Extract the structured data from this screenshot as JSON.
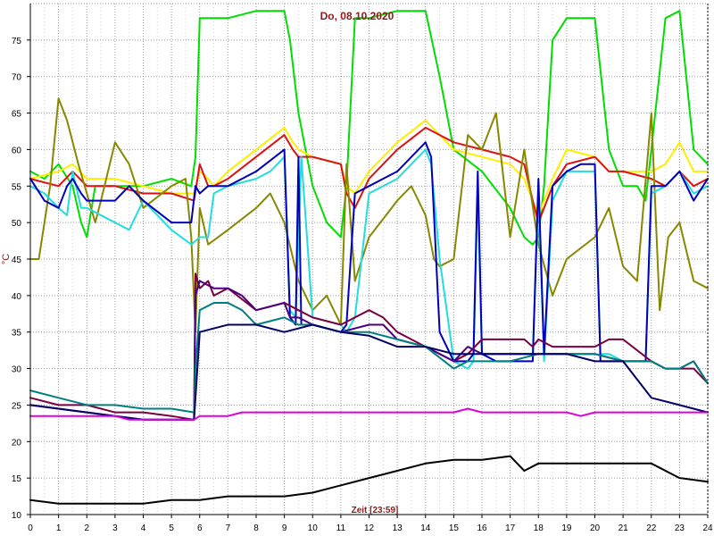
{
  "chart_data": {
    "type": "line",
    "title": "Do, 08.10.2020",
    "ylabel": "°C",
    "xlabel": "Zeit [23:59]",
    "xlim": [
      0,
      24
    ],
    "ylim": [
      10,
      80
    ],
    "xticks": [
      "0",
      "1",
      "2",
      "3",
      "4",
      "5",
      "6",
      "7",
      "8",
      "9",
      "10",
      "11",
      "12",
      "13",
      "14",
      "15",
      "16",
      "17",
      "18",
      "19",
      "20",
      "21",
      "22",
      "23",
      "24"
    ],
    "yticks": [
      "10",
      "15",
      "20",
      "25",
      "30",
      "35",
      "40",
      "45",
      "50",
      "55",
      "60",
      "65",
      "70",
      "75"
    ],
    "grid": true,
    "legend": "none",
    "series": [
      {
        "color": "#00dd00",
        "x": [
          0,
          0.5,
          1,
          1.5,
          1.8,
          2,
          2.3,
          3,
          4,
          5,
          5.7,
          5.85,
          6,
          6.5,
          7,
          8,
          9,
          9.2,
          9.5,
          10,
          10.5,
          11,
          11.2,
          11.5,
          12,
          13,
          14,
          14.5,
          15,
          16,
          17,
          17.5,
          17.8,
          18,
          18.2,
          18.5,
          19,
          20,
          20.5,
          21,
          21.5,
          21.8,
          22,
          22.5,
          23,
          23.5,
          24
        ],
        "y": [
          57,
          56,
          58,
          55,
          50,
          48,
          55,
          55,
          55,
          56,
          55,
          59,
          78,
          78,
          78,
          79,
          79,
          75,
          65,
          55,
          50,
          48,
          55,
          78,
          78,
          79,
          79,
          70,
          60,
          57,
          52,
          48,
          47,
          48,
          55,
          75,
          78,
          78,
          60,
          55,
          55,
          53,
          60,
          78,
          79,
          60,
          58
        ]
      },
      {
        "color": "#ffee00",
        "x": [
          0,
          1,
          1.5,
          2,
          3,
          4,
          5,
          5.8,
          6,
          6.3,
          6.5,
          7,
          8,
          9,
          9.3,
          9.5,
          10,
          11,
          11.2,
          11.5,
          12,
          13,
          14,
          14.5,
          15,
          16,
          17,
          17.5,
          17.8,
          18,
          18.5,
          19,
          20,
          20.5,
          21,
          22,
          22.5,
          23,
          23.5,
          24
        ],
        "y": [
          56,
          57,
          58,
          56,
          56,
          55,
          54,
          54,
          57,
          56,
          55,
          57,
          60,
          63,
          61,
          60,
          59,
          58,
          55,
          54,
          57,
          61,
          64,
          62,
          60,
          59,
          58,
          56,
          53,
          51,
          56,
          60,
          59,
          57,
          57,
          57,
          58,
          61,
          57,
          57
        ]
      },
      {
        "color": "#dd1111",
        "x": [
          0,
          1,
          1.5,
          2,
          3,
          4,
          5,
          5.8,
          6,
          6.3,
          6.5,
          7,
          8,
          9,
          9.3,
          9.5,
          10,
          11,
          11.2,
          11.5,
          12,
          13,
          14,
          14.5,
          15,
          16,
          17,
          17.5,
          17.8,
          18,
          18.5,
          19,
          20,
          20.5,
          21,
          22,
          22.5,
          23,
          23.5,
          24
        ],
        "y": [
          56,
          55,
          57,
          55,
          55,
          54,
          54,
          53,
          58,
          55,
          55,
          56,
          59,
          62,
          60,
          59,
          59,
          58,
          54,
          52,
          56,
          60,
          63,
          62,
          61,
          60,
          59,
          58,
          53,
          50,
          55,
          58,
          59,
          57,
          57,
          56,
          55,
          57,
          55,
          56
        ]
      },
      {
        "color": "#888800",
        "x": [
          0,
          0.3,
          0.7,
          1,
          1.3,
          1.7,
          2,
          2.3,
          2.5,
          3,
          3.5,
          4,
          5,
          5.5,
          5.7,
          5.85,
          6,
          6.3,
          7,
          8,
          8.5,
          9,
          9.5,
          10,
          10.5,
          11,
          11.2,
          11.5,
          12,
          13,
          13.5,
          14,
          14.3,
          14.5,
          15,
          15.5,
          16,
          16.5,
          17,
          17.5,
          18,
          18.5,
          19,
          20,
          20.5,
          21,
          21.5,
          22,
          22.3,
          22.6,
          23,
          23.5,
          24
        ],
        "y": [
          45,
          45,
          55,
          67,
          64,
          58,
          54,
          50,
          53,
          61,
          58,
          52,
          55,
          56,
          48,
          35,
          52,
          47,
          49,
          52,
          54,
          50,
          42,
          38,
          40,
          36,
          58,
          42,
          48,
          53,
          55,
          51,
          45,
          44,
          45,
          62,
          60,
          65,
          48,
          60,
          47,
          40,
          45,
          48,
          52,
          44,
          42,
          65,
          38,
          48,
          50,
          42,
          41
        ]
      },
      {
        "color": "#22dddd",
        "x": [
          0,
          0.5,
          1,
          1.3,
          1.5,
          1.8,
          2,
          3,
          3.5,
          4,
          5,
          5.7,
          6,
          6.3,
          6.5,
          7,
          8,
          8.5,
          9,
          9.2,
          9.4,
          9.6,
          10,
          11,
          11.2,
          11.5,
          12,
          13,
          14,
          14.2,
          14.5,
          15,
          15.5,
          15.7,
          15.85,
          16,
          16.5,
          17,
          17.5,
          17.8,
          18,
          18.2,
          18.5,
          19,
          19.5,
          20,
          20.2,
          20.5,
          21,
          21.5,
          21.8,
          22,
          22.5,
          23,
          23.5,
          24
        ],
        "y": [
          55,
          54,
          52,
          51,
          57,
          52,
          52,
          50,
          49,
          53,
          49,
          47,
          48,
          48,
          54,
          55,
          56,
          57,
          59,
          38,
          37,
          59,
          37,
          36,
          35,
          37,
          54,
          56,
          60,
          58,
          45,
          31,
          30,
          31,
          55,
          32,
          32,
          32,
          32,
          32,
          54,
          31,
          53,
          57,
          57,
          57,
          32,
          32,
          31,
          31,
          31,
          54,
          55,
          57,
          54,
          55
        ]
      },
      {
        "color": "#0000bb",
        "x": [
          0,
          0.5,
          1,
          1.3,
          1.5,
          1.8,
          2,
          3,
          3.5,
          4,
          5,
          5.7,
          5.85,
          6,
          6.3,
          7,
          8,
          9,
          9.2,
          9.4,
          9.5,
          9.6,
          10,
          11,
          11.2,
          11.5,
          12,
          13,
          14,
          14.2,
          14.5,
          15,
          15.5,
          15.7,
          15.85,
          16,
          16.5,
          17,
          17.5,
          17.8,
          18,
          18.2,
          18.5,
          19,
          19.5,
          20,
          20.2,
          20.5,
          21,
          21.5,
          21.8,
          22,
          22.5,
          23,
          23.5,
          24
        ],
        "y": [
          56,
          53,
          52,
          55,
          56,
          54,
          53,
          53,
          55,
          53,
          50,
          50,
          55,
          54,
          55,
          55,
          57,
          60,
          37,
          36,
          59,
          36,
          36,
          35,
          36,
          54,
          55,
          57,
          61,
          59,
          35,
          31,
          31,
          32,
          57,
          32,
          31,
          31,
          31,
          31,
          56,
          32,
          55,
          57,
          58,
          58,
          31,
          31,
          31,
          31,
          31,
          55,
          55,
          57,
          53,
          56
        ]
      },
      {
        "color": "#7a0040",
        "x": [
          0,
          1,
          2,
          3,
          4,
          5,
          5.8,
          5.85,
          6,
          6.3,
          6.5,
          7,
          8,
          9,
          9.5,
          10,
          11,
          12,
          12.5,
          13,
          13.5,
          14,
          14.5,
          15,
          15.5,
          16,
          17,
          17.5,
          17.8,
          18,
          18.5,
          19,
          20,
          20.5,
          21,
          22,
          22.5,
          23,
          23.5,
          24
        ],
        "y": [
          26,
          25,
          25,
          24,
          24,
          23.5,
          23,
          43,
          41,
          42,
          40,
          41,
          38,
          39,
          38,
          37,
          36,
          38,
          37,
          35,
          34,
          33,
          32,
          31,
          32,
          34,
          34,
          34,
          33,
          34,
          33,
          33,
          33,
          34,
          34,
          31,
          30,
          30,
          30,
          28
        ]
      },
      {
        "color": "#4b0082",
        "x": [
          0,
          1,
          2,
          3,
          4,
          5,
          5.8,
          5.85,
          6,
          6.5,
          7,
          7.5,
          8,
          9,
          9.2,
          9.5,
          10,
          11,
          12,
          12.5,
          13,
          14,
          15,
          15.5,
          16,
          17,
          18,
          19,
          20,
          21,
          22,
          22.5,
          23,
          23.5,
          24
        ],
        "y": [
          25,
          24.5,
          24,
          23.5,
          23,
          23,
          23,
          40,
          42,
          41,
          41,
          40,
          38,
          39,
          37,
          37,
          36,
          35,
          36,
          36,
          34,
          33,
          31,
          33,
          32,
          32,
          32,
          32,
          32,
          31,
          31,
          30,
          30,
          31,
          28
        ]
      },
      {
        "color": "#008080",
        "x": [
          0,
          1,
          2,
          3,
          4,
          5,
          5.8,
          5.85,
          6,
          6.5,
          7,
          7.5,
          8,
          9,
          9.5,
          10,
          11,
          12,
          13,
          14,
          15,
          15.5,
          16,
          17,
          18,
          19,
          20,
          21,
          22,
          22.5,
          23,
          23.5,
          24
        ],
        "y": [
          27,
          26,
          25,
          25,
          24.5,
          24.5,
          24,
          30,
          38,
          39,
          39,
          38,
          36,
          37,
          36,
          36,
          35,
          35,
          34,
          33,
          30,
          31,
          31,
          31,
          32,
          32,
          32,
          31,
          31,
          30,
          30,
          31,
          28
        ]
      },
      {
        "color": "#000066",
        "x": [
          0,
          1,
          2,
          3,
          4,
          5,
          5.8,
          6,
          7,
          8,
          9,
          10,
          11,
          12,
          13,
          14,
          15,
          16,
          17,
          18,
          19,
          20,
          21,
          22,
          23,
          24
        ],
        "y": [
          25,
          24.5,
          24,
          23.5,
          23,
          23,
          23,
          35,
          36,
          36,
          35,
          36,
          35,
          34.5,
          33,
          33,
          32,
          32,
          32,
          32,
          32,
          31,
          31,
          26,
          25,
          24
        ]
      },
      {
        "color": "#dd00dd",
        "x": [
          0,
          3,
          3.5,
          5.8,
          6,
          7,
          7.5,
          11,
          11.5,
          15,
          15.5,
          16,
          19,
          19.5,
          20,
          24
        ],
        "y": [
          23.5,
          23.5,
          23,
          23,
          23.5,
          23.5,
          24,
          24,
          24,
          24,
          24.5,
          24,
          24,
          23.5,
          24,
          24
        ]
      },
      {
        "color": "#000000",
        "x": [
          0,
          1,
          2,
          3,
          4,
          5,
          6,
          7,
          8,
          9,
          10,
          11,
          12,
          13,
          14,
          15,
          16,
          17,
          17.5,
          18,
          19,
          20,
          21,
          22,
          23,
          24
        ],
        "y": [
          12,
          11.5,
          11.5,
          11.5,
          11.5,
          12,
          12,
          12.5,
          12.5,
          12.5,
          13,
          14,
          15,
          16,
          17,
          17.5,
          17.5,
          18,
          16,
          17,
          17,
          17,
          17,
          17,
          15,
          14.5
        ]
      }
    ]
  }
}
